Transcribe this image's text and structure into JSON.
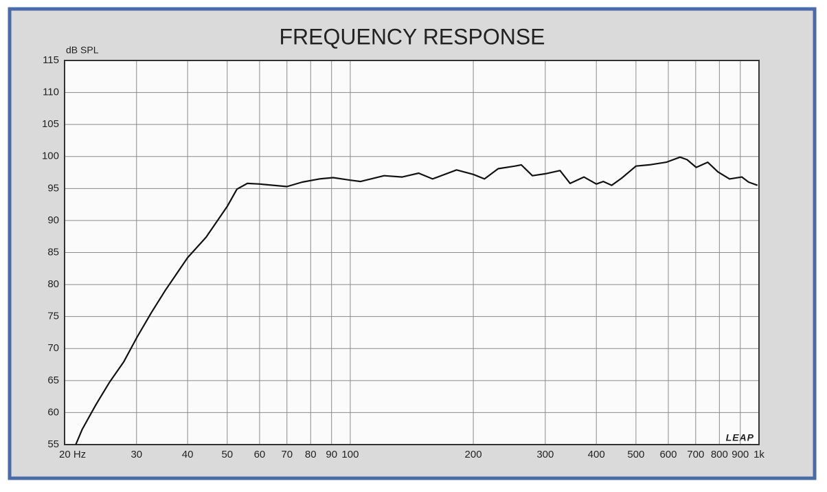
{
  "chart_data": {
    "type": "line",
    "title": "FREQUENCY RESPONSE",
    "y_label": "dB SPL",
    "watermark": "LEAP",
    "xscale": "log",
    "grid": true,
    "xlim": [
      20,
      1000
    ],
    "ylim": [
      55,
      115
    ],
    "xticks": [
      {
        "value": 20,
        "label": "20  Hz"
      },
      30,
      40,
      50,
      60,
      70,
      80,
      90,
      100,
      200,
      300,
      400,
      500,
      600,
      700,
      800,
      900,
      {
        "value": 1000,
        "label": "1k"
      }
    ],
    "yticks": [
      55,
      60,
      65,
      70,
      75,
      80,
      85,
      90,
      95,
      100,
      105,
      110,
      115
    ],
    "x": [
      21.3,
      22.1,
      23.9,
      25.8,
      27.9,
      30.1,
      32.6,
      35.2,
      40,
      44.4,
      50,
      52.8,
      56,
      60,
      70,
      76.3,
      84,
      90.8,
      100,
      106,
      121,
      134,
      147,
      159,
      182,
      200,
      213,
      230,
      253,
      262,
      279,
      300,
      326,
      345,
      373,
      400,
      416,
      436,
      461,
      500,
      539,
      593,
      641,
      667,
      702,
      749,
      793,
      847,
      908,
      943,
      991
    ],
    "series": [
      {
        "color": "#111111",
        "values": [
          55,
          57.4,
          61.3,
          64.8,
          67.9,
          71.8,
          75.6,
          79.0,
          84.2,
          87.4,
          92.2,
          94.9,
          95.8,
          95.7,
          95.3,
          96.0,
          96.5,
          96.7,
          96.3,
          96.1,
          97.0,
          96.8,
          97.4,
          96.5,
          97.9,
          97.2,
          96.5,
          98.1,
          98.5,
          98.7,
          97.0,
          97.3,
          97.8,
          95.8,
          96.8,
          95.7,
          96.1,
          95.5,
          96.6,
          98.5,
          98.7,
          99.1,
          99.9,
          99.5,
          98.3,
          99.1,
          97.6,
          96.5,
          96.8,
          96.0,
          95.5
        ]
      }
    ]
  }
}
